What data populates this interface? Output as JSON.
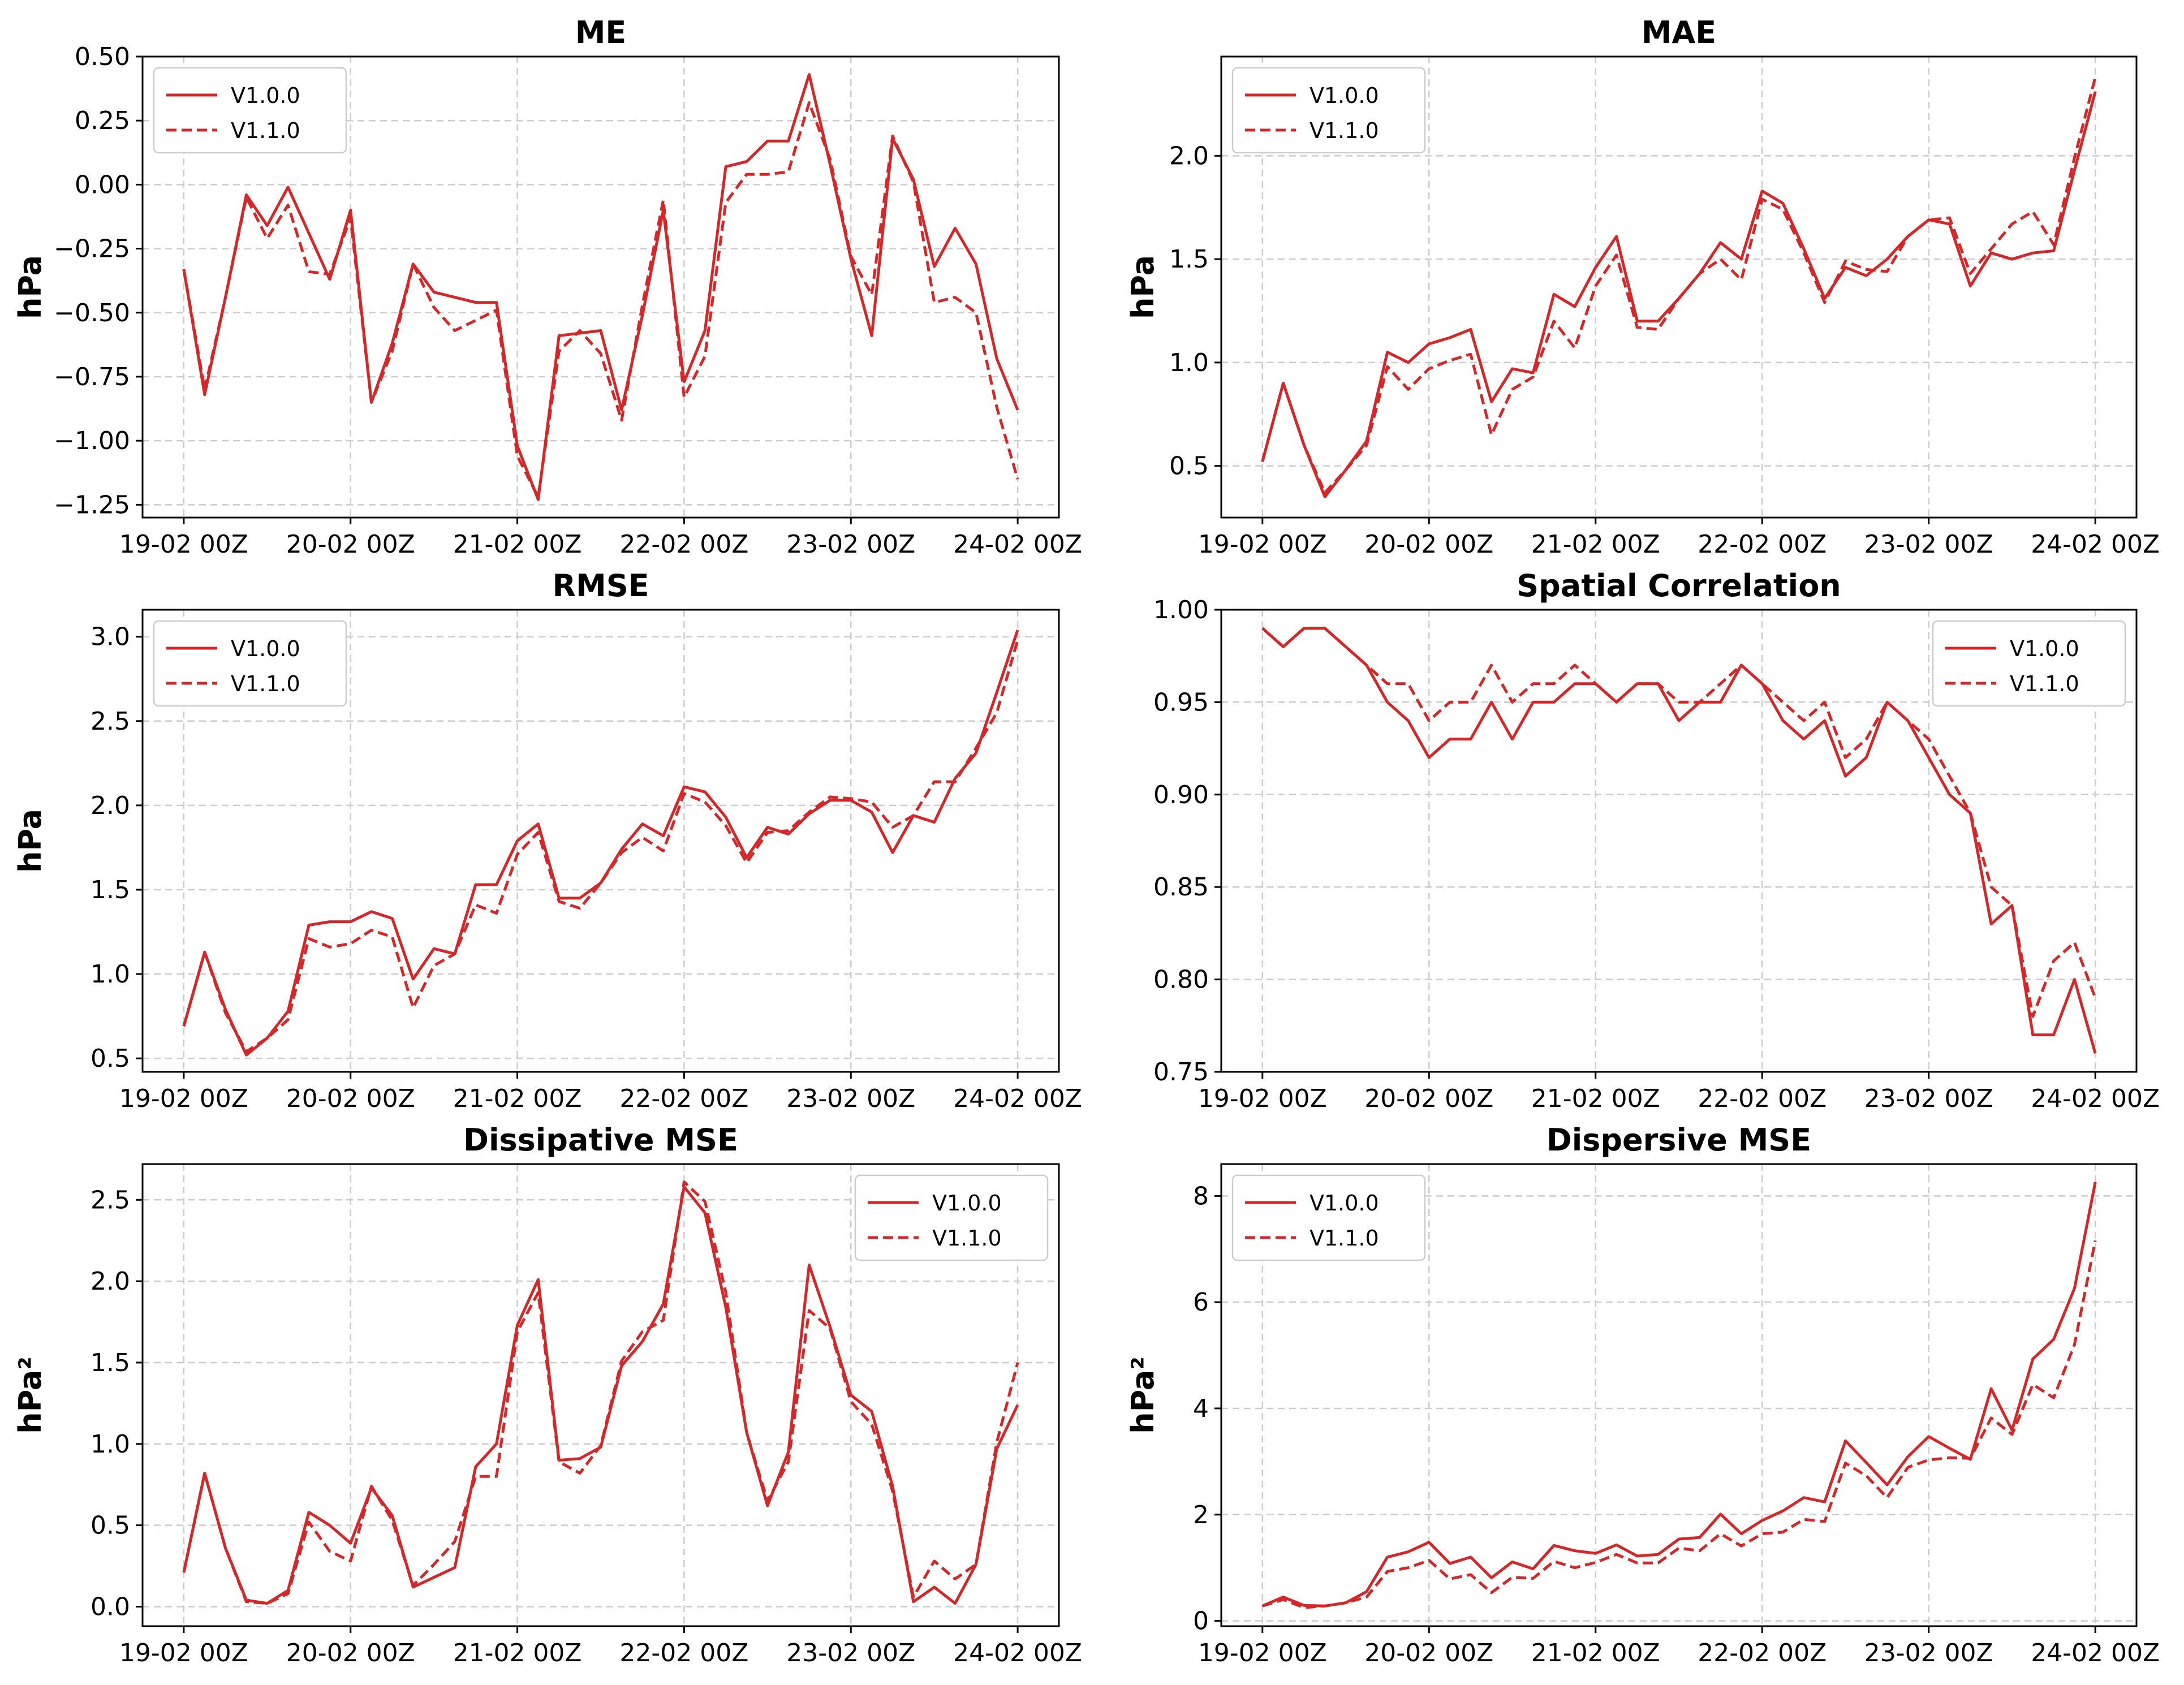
{
  "series_color": "#d62728",
  "chart_data": [
    {
      "type": "line",
      "title": "ME",
      "ylabel": "hPa",
      "ylim": [
        -1.3,
        0.5
      ],
      "yticks": [
        -1.25,
        -1.0,
        -0.75,
        -0.5,
        -0.25,
        0.0,
        0.25,
        0.5
      ],
      "ytick_labels": [
        "−1.25",
        "−1.00",
        "−0.75",
        "−0.50",
        "−0.25",
        "0.00",
        "0.25",
        "0.50"
      ],
      "xlim": [
        0,
        40
      ],
      "xticks": [
        0,
        8,
        16,
        24,
        32,
        40
      ],
      "xtick_labels": [
        "19-02 00Z",
        "20-02 00Z",
        "21-02 00Z",
        "22-02 00Z",
        "23-02 00Z",
        "24-02 00Z"
      ],
      "legend": "upper left",
      "series": [
        {
          "name": "V1.0.0",
          "style": "solid",
          "values": [
            -0.33,
            -0.82,
            -0.44,
            -0.04,
            -0.16,
            -0.01,
            -0.19,
            -0.37,
            -0.1,
            -0.85,
            -0.62,
            -0.31,
            -0.42,
            -0.44,
            -0.46,
            -0.46,
            -1.02,
            -1.23,
            -0.59,
            -0.58,
            -0.57,
            -0.88,
            -0.51,
            -0.1,
            -0.77,
            -0.57,
            0.07,
            0.09,
            0.17,
            0.17,
            0.43,
            0.08,
            -0.29,
            -0.59,
            0.18,
            0.02,
            -0.32,
            -0.17,
            -0.31,
            -0.68,
            -0.88
          ]
        },
        {
          "name": "V1.1.0",
          "style": "dashed",
          "values": [
            -0.33,
            -0.8,
            -0.44,
            -0.05,
            -0.21,
            -0.08,
            -0.34,
            -0.35,
            -0.13,
            -0.85,
            -0.65,
            -0.31,
            -0.48,
            -0.57,
            -0.53,
            -0.49,
            -1.06,
            -1.22,
            -0.65,
            -0.57,
            -0.66,
            -0.92,
            -0.47,
            -0.06,
            -0.83,
            -0.67,
            -0.07,
            0.04,
            0.04,
            0.05,
            0.32,
            0.1,
            -0.28,
            -0.43,
            0.19,
            0.01,
            -0.46,
            -0.44,
            -0.5,
            -0.87,
            -1.15
          ]
        }
      ]
    },
    {
      "type": "line",
      "title": "MAE",
      "ylabel": "hPa",
      "ylim": [
        0.25,
        2.48
      ],
      "yticks": [
        0.5,
        1.0,
        1.5,
        2.0
      ],
      "ytick_labels": [
        "0.5",
        "1.0",
        "1.5",
        "2.0"
      ],
      "xlim": [
        0,
        40
      ],
      "xticks": [
        0,
        8,
        16,
        24,
        32,
        40
      ],
      "xtick_labels": [
        "19-02 00Z",
        "20-02 00Z",
        "21-02 00Z",
        "22-02 00Z",
        "23-02 00Z",
        "24-02 00Z"
      ],
      "legend": "upper left",
      "series": [
        {
          "name": "V1.0.0",
          "style": "solid",
          "values": [
            0.52,
            0.9,
            0.6,
            0.35,
            0.48,
            0.62,
            1.05,
            1.0,
            1.09,
            1.12,
            1.16,
            0.81,
            0.97,
            0.95,
            1.33,
            1.27,
            1.46,
            1.61,
            1.2,
            1.2,
            1.31,
            1.43,
            1.58,
            1.5,
            1.83,
            1.77,
            1.55,
            1.31,
            1.46,
            1.42,
            1.5,
            1.61,
            1.69,
            1.67,
            1.37,
            1.53,
            1.5,
            1.53,
            1.54,
            1.93,
            2.31
          ]
        },
        {
          "name": "V1.1.0",
          "style": "dashed",
          "values": [
            0.52,
            0.9,
            0.6,
            0.37,
            0.48,
            0.6,
            0.98,
            0.87,
            0.97,
            1.01,
            1.04,
            0.65,
            0.87,
            0.93,
            1.2,
            1.07,
            1.37,
            1.52,
            1.17,
            1.16,
            1.31,
            1.43,
            1.5,
            1.4,
            1.79,
            1.74,
            1.53,
            1.29,
            1.49,
            1.45,
            1.44,
            1.61,
            1.69,
            1.7,
            1.43,
            1.55,
            1.67,
            1.73,
            1.57,
            1.99,
            2.38
          ]
        }
      ]
    },
    {
      "type": "line",
      "title": "RMSE",
      "ylabel": "hPa",
      "ylim": [
        0.42,
        3.16
      ],
      "yticks": [
        0.5,
        1.0,
        1.5,
        2.0,
        2.5,
        3.0
      ],
      "ytick_labels": [
        "0.5",
        "1.0",
        "1.5",
        "2.0",
        "2.5",
        "3.0"
      ],
      "xlim": [
        0,
        40
      ],
      "xticks": [
        0,
        8,
        16,
        24,
        32,
        40
      ],
      "xtick_labels": [
        "19-02 00Z",
        "20-02 00Z",
        "21-02 00Z",
        "22-02 00Z",
        "23-02 00Z",
        "24-02 00Z"
      ],
      "legend": "upper left",
      "series": [
        {
          "name": "V1.0.0",
          "style": "solid",
          "values": [
            0.69,
            1.13,
            0.79,
            0.52,
            0.62,
            0.78,
            1.29,
            1.31,
            1.31,
            1.37,
            1.33,
            0.97,
            1.15,
            1.12,
            1.53,
            1.53,
            1.79,
            1.89,
            1.45,
            1.45,
            1.54,
            1.74,
            1.89,
            1.82,
            2.11,
            2.08,
            1.93,
            1.69,
            1.87,
            1.83,
            1.95,
            2.03,
            2.03,
            1.96,
            1.72,
            1.94,
            1.9,
            2.16,
            2.31,
            2.67,
            3.04
          ]
        },
        {
          "name": "V1.1.0",
          "style": "dashed",
          "values": [
            0.69,
            1.13,
            0.77,
            0.54,
            0.62,
            0.73,
            1.21,
            1.16,
            1.18,
            1.26,
            1.22,
            0.8,
            1.05,
            1.12,
            1.41,
            1.36,
            1.71,
            1.84,
            1.43,
            1.39,
            1.54,
            1.72,
            1.81,
            1.73,
            2.07,
            2.02,
            1.88,
            1.66,
            1.84,
            1.85,
            1.96,
            2.05,
            2.04,
            2.02,
            1.87,
            1.94,
            2.14,
            2.14,
            2.34,
            2.55,
            2.98
          ]
        }
      ]
    },
    {
      "type": "line",
      "title": "Spatial Correlation",
      "ylabel": "",
      "ylim": [
        0.75,
        1.0
      ],
      "yticks": [
        0.75,
        0.8,
        0.85,
        0.9,
        0.95,
        1.0
      ],
      "ytick_labels": [
        "0.75",
        "0.80",
        "0.85",
        "0.90",
        "0.95",
        "1.00"
      ],
      "xlim": [
        0,
        40
      ],
      "xticks": [
        0,
        8,
        16,
        24,
        32,
        40
      ],
      "xtick_labels": [
        "19-02 00Z",
        "20-02 00Z",
        "21-02 00Z",
        "22-02 00Z",
        "23-02 00Z",
        "24-02 00Z"
      ],
      "legend": "upper right",
      "series": [
        {
          "name": "V1.0.0",
          "style": "solid",
          "values": [
            0.99,
            0.98,
            0.99,
            0.99,
            0.98,
            0.97,
            0.95,
            0.94,
            0.92,
            0.93,
            0.93,
            0.95,
            0.93,
            0.95,
            0.95,
            0.96,
            0.96,
            0.95,
            0.96,
            0.96,
            0.94,
            0.95,
            0.95,
            0.97,
            0.96,
            0.94,
            0.93,
            0.94,
            0.91,
            0.92,
            0.95,
            0.94,
            0.92,
            0.9,
            0.89,
            0.83,
            0.84,
            0.77,
            0.77,
            0.8,
            0.76
          ]
        },
        {
          "name": "V1.1.0",
          "style": "dashed",
          "values": [
            0.99,
            0.98,
            0.99,
            0.99,
            0.98,
            0.97,
            0.96,
            0.96,
            0.94,
            0.95,
            0.95,
            0.97,
            0.95,
            0.96,
            0.96,
            0.97,
            0.96,
            0.95,
            0.96,
            0.96,
            0.95,
            0.95,
            0.96,
            0.97,
            0.96,
            0.95,
            0.94,
            0.95,
            0.92,
            0.93,
            0.95,
            0.94,
            0.93,
            0.91,
            0.89,
            0.85,
            0.84,
            0.78,
            0.81,
            0.82,
            0.79
          ]
        }
      ]
    },
    {
      "type": "line",
      "title": "Dissipative MSE",
      "ylabel": "hPa²",
      "ylim": [
        -0.12,
        2.72
      ],
      "yticks": [
        0.0,
        0.5,
        1.0,
        1.5,
        2.0,
        2.5
      ],
      "ytick_labels": [
        "0.0",
        "0.5",
        "1.0",
        "1.5",
        "2.0",
        "2.5"
      ],
      "xlim": [
        0,
        40
      ],
      "xticks": [
        0,
        8,
        16,
        24,
        32,
        40
      ],
      "xtick_labels": [
        "19-02 00Z",
        "20-02 00Z",
        "21-02 00Z",
        "22-02 00Z",
        "23-02 00Z",
        "24-02 00Z"
      ],
      "legend": "upper right",
      "series": [
        {
          "name": "V1.0.0",
          "style": "solid",
          "values": [
            0.21,
            0.82,
            0.36,
            0.04,
            0.02,
            0.1,
            0.58,
            0.5,
            0.39,
            0.73,
            0.56,
            0.12,
            0.18,
            0.24,
            0.86,
            1.0,
            1.73,
            2.01,
            0.9,
            0.91,
            0.98,
            1.48,
            1.63,
            1.86,
            2.58,
            2.42,
            1.84,
            1.07,
            0.62,
            0.95,
            2.1,
            1.72,
            1.3,
            1.2,
            0.74,
            0.03,
            0.12,
            0.02,
            0.26,
            0.97,
            1.24
          ]
        },
        {
          "name": "V1.1.0",
          "style": "dashed",
          "values": [
            0.21,
            0.82,
            0.36,
            0.03,
            0.02,
            0.08,
            0.52,
            0.34,
            0.28,
            0.74,
            0.53,
            0.13,
            0.26,
            0.4,
            0.8,
            0.8,
            1.69,
            1.93,
            0.89,
            0.82,
            0.99,
            1.51,
            1.69,
            1.76,
            2.61,
            2.49,
            1.93,
            1.07,
            0.65,
            0.89,
            1.82,
            1.71,
            1.26,
            1.12,
            0.71,
            0.06,
            0.28,
            0.17,
            0.26,
            1.01,
            1.5
          ]
        }
      ]
    },
    {
      "type": "line",
      "title": "Dispersive MSE",
      "ylabel": "hPa²",
      "ylim": [
        -0.1,
        8.6
      ],
      "yticks": [
        0,
        2,
        4,
        6,
        8
      ],
      "ytick_labels": [
        "0",
        "2",
        "4",
        "6",
        "8"
      ],
      "xlim": [
        0,
        40
      ],
      "xticks": [
        0,
        8,
        16,
        24,
        32,
        40
      ],
      "xtick_labels": [
        "19-02 00Z",
        "20-02 00Z",
        "21-02 00Z",
        "22-02 00Z",
        "23-02 00Z",
        "24-02 00Z"
      ],
      "legend": "upper left",
      "series": [
        {
          "name": "V1.0.0",
          "style": "solid",
          "values": [
            0.28,
            0.45,
            0.29,
            0.28,
            0.34,
            0.55,
            1.2,
            1.3,
            1.48,
            1.08,
            1.2,
            0.81,
            1.11,
            0.98,
            1.42,
            1.32,
            1.27,
            1.43,
            1.22,
            1.25,
            1.54,
            1.57,
            2.01,
            1.64,
            1.89,
            2.07,
            2.32,
            2.24,
            3.39,
            2.98,
            2.56,
            3.09,
            3.47,
            3.25,
            3.04,
            4.37,
            3.59,
            4.93,
            5.3,
            6.26,
            8.26
          ]
        },
        {
          "name": "V1.1.0",
          "style": "dashed",
          "values": [
            0.28,
            0.4,
            0.25,
            0.28,
            0.34,
            0.45,
            0.93,
            1.0,
            1.14,
            0.79,
            0.87,
            0.53,
            0.82,
            0.8,
            1.12,
            1.0,
            1.1,
            1.25,
            1.09,
            1.09,
            1.37,
            1.32,
            1.64,
            1.41,
            1.64,
            1.67,
            1.91,
            1.87,
            2.97,
            2.73,
            2.32,
            2.89,
            3.03,
            3.07,
            3.06,
            3.82,
            3.51,
            4.45,
            4.2,
            5.2,
            7.16
          ]
        }
      ]
    }
  ]
}
